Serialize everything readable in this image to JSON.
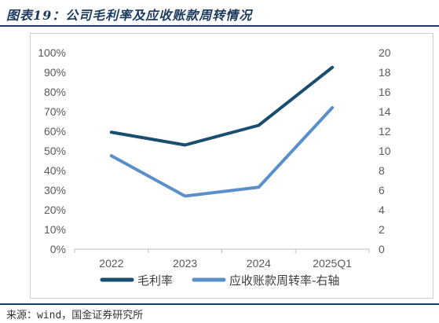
{
  "figure_title": "图表19：公司毛利率及应收账款周转情况",
  "source_note": "来源：wind，国金证券研究所",
  "colors": {
    "title": "#1c3a5e",
    "gross_margin": "#1a4e6e",
    "receivable_turnover": "#5b8fc9",
    "axis": "#bfbfbf",
    "tick": "#595959"
  },
  "chart_data": {
    "type": "line",
    "title": "",
    "categories": [
      "2022",
      "2023",
      "2024",
      "2025Q1"
    ],
    "y_left": {
      "ticks": [
        "0%",
        "10%",
        "20%",
        "30%",
        "40%",
        "50%",
        "60%",
        "70%",
        "80%",
        "90%",
        "100%"
      ],
      "ylim": [
        0,
        100
      ],
      "unit": "%"
    },
    "y_right": {
      "ticks": [
        "0",
        "2",
        "4",
        "6",
        "8",
        "10",
        "12",
        "14",
        "16",
        "18",
        "20"
      ],
      "ylim": [
        0,
        20
      ]
    },
    "series": [
      {
        "name": "毛利率",
        "axis": "left",
        "values": [
          59.5,
          53.0,
          63.0,
          92.5
        ]
      },
      {
        "name": "应收账款周转率-右轴",
        "axis": "right",
        "values": [
          9.5,
          5.4,
          6.3,
          14.4
        ]
      }
    ],
    "grid": false,
    "legend": "bottom"
  }
}
